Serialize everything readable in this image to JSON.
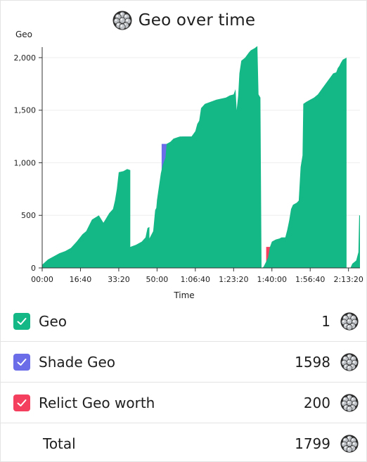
{
  "title": "Geo over time",
  "colors": {
    "geo": "#14b886",
    "shade": "#6a6ce8",
    "relic": "#f43f5e",
    "grid": "#eeeeee"
  },
  "chart_data": {
    "type": "area",
    "title": "Geo over time",
    "xlabel": "Time",
    "ylabel": "Geo",
    "xlim": [
      0,
      8300
    ],
    "ylim": [
      0,
      2100
    ],
    "x_ticks": [
      0,
      1000,
      2000,
      3000,
      4000,
      5000,
      6000,
      7000,
      8000
    ],
    "x_tick_labels": [
      "00:00",
      "16:40",
      "33:20",
      "50:00",
      "1:06:40",
      "1:23:20",
      "1:40:00",
      "1:56:40",
      "2:13:20"
    ],
    "y_ticks": [
      0,
      500,
      1000,
      1500,
      2000
    ],
    "y_tick_labels": [
      "0",
      "500",
      "1,000",
      "1,500",
      "2,000"
    ],
    "series": [
      {
        "name": "Relict Geo worth",
        "key": "relic",
        "stepped": true,
        "points": [
          [
            0,
            0
          ],
          [
            2000,
            0
          ],
          [
            2000,
            200
          ],
          [
            3000,
            200
          ],
          [
            3000,
            650
          ],
          [
            4300,
            650
          ],
          [
            4300,
            850
          ],
          [
            5100,
            850
          ],
          [
            5100,
            1300
          ],
          [
            5120,
            1300
          ],
          [
            5120,
            0
          ],
          [
            5850,
            0
          ],
          [
            5850,
            200
          ],
          [
            6800,
            200
          ],
          [
            6800,
            650
          ],
          [
            7850,
            650
          ],
          [
            7850,
            0
          ],
          [
            8300,
            0
          ]
        ]
      },
      {
        "name": "Shade Geo",
        "key": "shade",
        "stepped": true,
        "points": [
          [
            0,
            0
          ],
          [
            3120,
            0
          ],
          [
            3120,
            1180
          ],
          [
            3400,
            1180
          ],
          [
            3400,
            0
          ],
          [
            3650,
            0
          ],
          [
            3650,
            1250
          ],
          [
            3900,
            1250
          ],
          [
            3900,
            0
          ],
          [
            6250,
            0
          ],
          [
            6250,
            280
          ],
          [
            6450,
            280
          ],
          [
            6450,
            0
          ],
          [
            7150,
            0
          ],
          [
            7150,
            1580
          ],
          [
            7350,
            1580
          ],
          [
            7350,
            0
          ],
          [
            8300,
            0
          ]
        ]
      },
      {
        "name": "Geo",
        "key": "geo",
        "stepped": false,
        "points": [
          [
            0,
            30
          ],
          [
            150,
            80
          ],
          [
            300,
            110
          ],
          [
            450,
            140
          ],
          [
            600,
            160
          ],
          [
            750,
            190
          ],
          [
            900,
            250
          ],
          [
            1050,
            320
          ],
          [
            1150,
            350
          ],
          [
            1300,
            460
          ],
          [
            1480,
            500
          ],
          [
            1600,
            430
          ],
          [
            1650,
            460
          ],
          [
            1750,
            520
          ],
          [
            1850,
            560
          ],
          [
            1900,
            640
          ],
          [
            1950,
            750
          ],
          [
            2000,
            910
          ],
          [
            2120,
            920
          ],
          [
            2220,
            940
          ],
          [
            2300,
            930
          ],
          [
            2300,
            200
          ],
          [
            2450,
            220
          ],
          [
            2600,
            250
          ],
          [
            2700,
            290
          ],
          [
            2750,
            380
          ],
          [
            2800,
            390
          ],
          [
            2800,
            280
          ],
          [
            2900,
            350
          ],
          [
            2950,
            550
          ],
          [
            2980,
            570
          ],
          [
            3000,
            650
          ],
          [
            3100,
            900
          ],
          [
            3150,
            980
          ],
          [
            3220,
            1050
          ],
          [
            3250,
            1180
          ],
          [
            3350,
            1200
          ],
          [
            3430,
            1230
          ],
          [
            3600,
            1250
          ],
          [
            3900,
            1250
          ],
          [
            4000,
            1300
          ],
          [
            4050,
            1370
          ],
          [
            4100,
            1400
          ],
          [
            4150,
            1520
          ],
          [
            4250,
            1560
          ],
          [
            4400,
            1580
          ],
          [
            4550,
            1600
          ],
          [
            4800,
            1620
          ],
          [
            4900,
            1640
          ],
          [
            5000,
            1650
          ],
          [
            5050,
            1700
          ],
          [
            5080,
            1500
          ],
          [
            5120,
            1640
          ],
          [
            5150,
            1850
          ],
          [
            5200,
            1970
          ],
          [
            5300,
            2000
          ],
          [
            5400,
            2050
          ],
          [
            5450,
            2070
          ],
          [
            5550,
            2090
          ],
          [
            5620,
            2110
          ],
          [
            5650,
            1650
          ],
          [
            5700,
            1620
          ],
          [
            5730,
            0
          ],
          [
            5780,
            10
          ],
          [
            5850,
            60
          ],
          [
            5900,
            100
          ],
          [
            5950,
            200
          ],
          [
            6000,
            250
          ],
          [
            6100,
            270
          ],
          [
            6200,
            280
          ],
          [
            6250,
            290
          ],
          [
            6350,
            290
          ],
          [
            6400,
            360
          ],
          [
            6450,
            450
          ],
          [
            6500,
            560
          ],
          [
            6550,
            600
          ],
          [
            6650,
            620
          ],
          [
            6700,
            640
          ],
          [
            6750,
            960
          ],
          [
            6800,
            1070
          ],
          [
            6820,
            1560
          ],
          [
            6900,
            1580
          ],
          [
            7000,
            1600
          ],
          [
            7100,
            1620
          ],
          [
            7200,
            1650
          ],
          [
            7300,
            1700
          ],
          [
            7400,
            1750
          ],
          [
            7500,
            1800
          ],
          [
            7600,
            1850
          ],
          [
            7680,
            1860
          ],
          [
            7720,
            1900
          ],
          [
            7760,
            1920
          ],
          [
            7800,
            1950
          ],
          [
            7850,
            1980
          ],
          [
            7950,
            2000
          ],
          [
            7950,
            0
          ],
          [
            8050,
            0
          ],
          [
            8100,
            40
          ],
          [
            8200,
            70
          ],
          [
            8260,
            150
          ],
          [
            8280,
            500
          ],
          [
            8300,
            500
          ]
        ]
      }
    ],
    "grid": true
  },
  "legend": {
    "rows": [
      {
        "label": "Geo",
        "value": "1",
        "checked": true
      },
      {
        "label": "Shade Geo",
        "value": "1598",
        "checked": true
      },
      {
        "label": "Relict Geo worth",
        "value": "200",
        "checked": true
      }
    ],
    "total_label": "Total",
    "total_value": "1799"
  },
  "icons": {
    "checkbox": "checkmark-icon",
    "currency": "geo-currency-icon"
  }
}
